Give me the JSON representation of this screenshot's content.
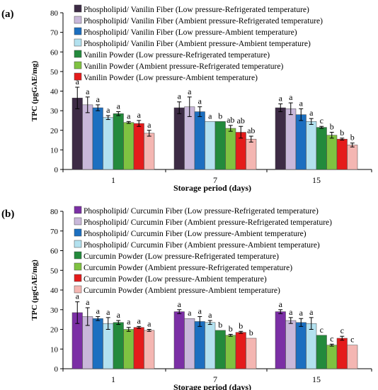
{
  "chart_data": [
    {
      "panel_label": "(a)",
      "type": "bar",
      "ylabel": "TPC (µgGAE/mg)",
      "xlabel": "Storage period (days)",
      "ylim": [
        0,
        80
      ],
      "yticks": [
        0,
        10,
        20,
        30,
        40,
        50,
        60,
        70,
        80
      ],
      "categories": [
        "1",
        "7",
        "15"
      ],
      "series": [
        {
          "name": "Phospholipid/ Vanilin Fiber (Low pressure-Refrigerated temperature)",
          "color": "#3d2b45",
          "values": [
            36.5,
            31.5,
            31.5
          ],
          "errors": [
            5.5,
            3,
            2
          ],
          "letters": [
            "a",
            "a",
            "a"
          ]
        },
        {
          "name": "Phospholipid/ Vanilin Fiber (Ambient pressure-Refrigerated temperature)",
          "color": "#c9b8da",
          "values": [
            33,
            32,
            31
          ],
          "errors": [
            4,
            5,
            3
          ],
          "letters": [
            "a",
            "a",
            "a"
          ]
        },
        {
          "name": "Phospholipid/ Vanilin Fiber (Low pressure-Ambient temperature)",
          "color": "#1c6fc0",
          "values": [
            31.5,
            29.5,
            28
          ],
          "errors": [
            1.5,
            2.5,
            3
          ],
          "letters": [
            "a",
            "a",
            "a"
          ]
        },
        {
          "name": "Phospholipid/ Vanilin Fiber (Ambient pressure-Ambient temperature)",
          "color": "#b3e1ef",
          "values": [
            26.5,
            24.5,
            24.5
          ],
          "errors": [
            1,
            0,
            1.5
          ],
          "letters": [
            "a",
            "a",
            "a"
          ]
        },
        {
          "name": "Vanilin Powder (Low pressure-Refrigerated temperature)",
          "color": "#238a3c",
          "values": [
            28.5,
            24.5,
            21.5
          ],
          "errors": [
            1,
            0,
            0.5
          ],
          "letters": [
            "a",
            "b",
            "c"
          ]
        },
        {
          "name": "Vanilin Powder  (Ambient pressure-Refrigerated temperature)",
          "color": "#7fc241",
          "values": [
            24,
            21,
            17.5
          ],
          "errors": [
            0.5,
            1.5,
            1.5
          ],
          "letters": [
            "a",
            "ab",
            "b"
          ]
        },
        {
          "name": "Vanilin Powder (Low pressure-Ambient temperature)",
          "color": "#e41b1b",
          "values": [
            23.5,
            19,
            15.5
          ],
          "errors": [
            1.5,
            3,
            0.5
          ],
          "letters": [
            "a",
            "ab",
            "b"
          ]
        },
        {
          "name": "",
          "color": "#f4b6b2",
          "values": [
            18.5,
            15.5,
            12.5
          ],
          "errors": [
            1.5,
            1.5,
            1
          ],
          "letters": [
            "a",
            "ab",
            "b"
          ]
        }
      ]
    },
    {
      "panel_label": "(b)",
      "type": "bar",
      "ylabel": "TPC (µgGAE/mg)",
      "xlabel": "Storage period (days)",
      "ylim": [
        0,
        80
      ],
      "yticks": [
        0,
        10,
        20,
        30,
        40,
        50,
        60,
        70,
        80
      ],
      "categories": [
        "1",
        "7",
        "15"
      ],
      "series": [
        {
          "name": "Phospholipid/ Curcumin Fiber (Low pressure-Refrigerated temperature)",
          "color": "#7b2fa5",
          "values": [
            28.5,
            29,
            29
          ],
          "errors": [
            5.5,
            1,
            1
          ],
          "letters": [
            "a",
            "a",
            "a"
          ]
        },
        {
          "name": "Phospholipid/ Curcumin Fiber (Ambient pressure-Refrigerated temperature)",
          "color": "#c9b8da",
          "values": [
            26.5,
            25.5,
            24.5
          ],
          "errors": [
            4.5,
            0,
            1.5
          ],
          "letters": [
            "a",
            "a",
            "a"
          ]
        },
        {
          "name": "Phospholipid/ Curcumin Fiber (Low pressure-Ambient temperature)",
          "color": "#1c6fc0",
          "values": [
            25.5,
            24,
            23.5
          ],
          "errors": [
            1,
            2.5,
            2
          ],
          "letters": [
            "a",
            "a",
            "a"
          ]
        },
        {
          "name": "Phospholipid/ Curcumin Fiber (Ambient pressure-Ambient temperature)",
          "color": "#b3e1ef",
          "values": [
            23,
            23.5,
            23
          ],
          "errors": [
            3,
            1,
            3
          ],
          "letters": [
            "a",
            "a",
            "a"
          ]
        },
        {
          "name": "Curcumin Powder (Low pressure-Refrigerated temperature)",
          "color": "#238a3c",
          "values": [
            23.5,
            19.5,
            17
          ],
          "errors": [
            1,
            0,
            0
          ],
          "letters": [
            "a",
            "b",
            "c"
          ]
        },
        {
          "name": "Curcumin Powder (Ambient pressure-Refrigerated temperature)",
          "color": "#7fc241",
          "values": [
            20,
            17,
            12
          ],
          "errors": [
            1,
            0.5,
            0.5
          ],
          "letters": [
            "a",
            "b",
            "c"
          ]
        },
        {
          "name": "Curcumin Powder (Low pressure-Ambient temperature)",
          "color": "#e41b1b",
          "values": [
            21,
            18.5,
            15.5
          ],
          "errors": [
            0.5,
            0.5,
            1
          ],
          "letters": [
            "a",
            "b",
            "c"
          ]
        },
        {
          "name": "Curcumin Powder (Ambient pressure-Ambient temperature)",
          "color": "#f4b6b2",
          "values": [
            19.5,
            15.5,
            12
          ],
          "errors": [
            0.5,
            0,
            0
          ],
          "letters": [
            "a",
            "b",
            "c"
          ]
        }
      ]
    }
  ]
}
